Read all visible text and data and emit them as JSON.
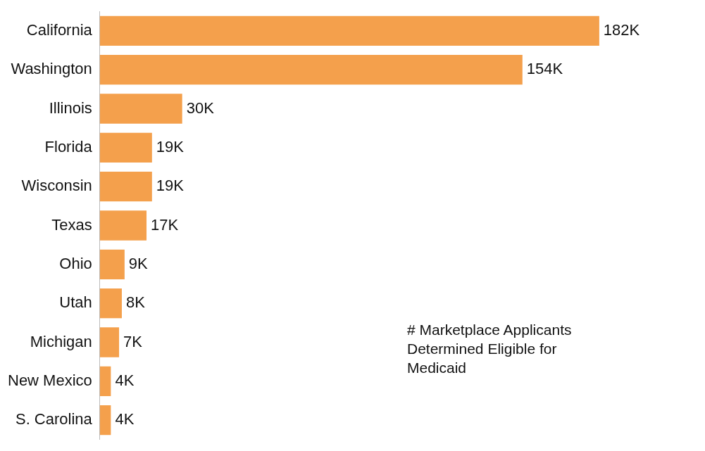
{
  "chart_data": {
    "type": "bar",
    "orientation": "horizontal",
    "categories": [
      "California",
      "Washington",
      "Illinois",
      "Florida",
      "Wisconsin",
      "Texas",
      "Ohio",
      "Utah",
      "Michigan",
      "New Mexico",
      "S. Carolina"
    ],
    "values": [
      182000,
      154000,
      30000,
      19000,
      19000,
      17000,
      9000,
      8000,
      7000,
      4000,
      4000
    ],
    "value_labels": [
      "182K",
      "154K",
      "30K",
      "19K",
      "19K",
      "17K",
      "9K",
      "8K",
      "7K",
      "4K",
      "4K"
    ],
    "color": "#f4a04c",
    "tick_labels": "y",
    "annotations": [
      "# Marketplace Applicants Determined Eligible for Medicaid"
    ]
  }
}
